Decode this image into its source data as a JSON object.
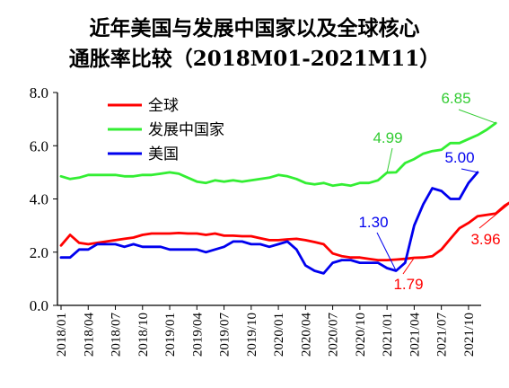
{
  "chart_data": {
    "type": "line",
    "title_line1": "近年美国与发展中国家以及全球核心",
    "title_line2": "通胀率比较（2018M01-2021M11）",
    "ylim": [
      0,
      8
    ],
    "yticks": [
      "0.0",
      "2.0",
      "4.0",
      "6.0",
      "8.0"
    ],
    "x_tick_labels": [
      "2018/01",
      "2018/04",
      "2018/07",
      "2018/10",
      "2019/01",
      "2019/04",
      "2019/07",
      "2019/10",
      "2020/01",
      "2020/04",
      "2020/07",
      "2020/10",
      "2021/01",
      "2021/04",
      "2021/07",
      "2021/10"
    ],
    "grid": false,
    "legend_position": "top-left",
    "series": [
      {
        "name": "全球",
        "color": "#ff0000",
        "values": [
          2.25,
          2.65,
          2.35,
          2.3,
          2.35,
          2.4,
          2.45,
          2.5,
          2.55,
          2.65,
          2.7,
          2.7,
          2.7,
          2.72,
          2.7,
          2.7,
          2.65,
          2.7,
          2.62,
          2.62,
          2.6,
          2.6,
          2.52,
          2.45,
          2.45,
          2.48,
          2.5,
          2.45,
          2.38,
          2.3,
          1.95,
          1.85,
          1.8,
          1.8,
          1.75,
          1.7,
          1.7,
          1.72,
          1.75,
          1.79,
          1.8,
          1.85,
          2.1,
          2.5,
          2.9,
          3.1,
          3.35,
          3.4,
          3.45,
          3.75,
          3.96
        ]
      },
      {
        "name": "发展中国家",
        "color": "#33ee33",
        "values": [
          4.85,
          4.75,
          4.8,
          4.9,
          4.9,
          4.9,
          4.9,
          4.85,
          4.85,
          4.9,
          4.9,
          4.95,
          5.0,
          4.95,
          4.8,
          4.65,
          4.6,
          4.7,
          4.65,
          4.7,
          4.65,
          4.7,
          4.75,
          4.8,
          4.9,
          4.85,
          4.75,
          4.6,
          4.55,
          4.6,
          4.5,
          4.55,
          4.5,
          4.6,
          4.6,
          4.7,
          4.99,
          5.0,
          5.35,
          5.5,
          5.7,
          5.8,
          5.85,
          6.1,
          6.1,
          6.25,
          6.4,
          6.6,
          6.85
        ]
      },
      {
        "name": "美国",
        "color": "#0000ee",
        "values": [
          1.8,
          1.8,
          2.1,
          2.1,
          2.3,
          2.3,
          2.3,
          2.2,
          2.3,
          2.2,
          2.2,
          2.2,
          2.1,
          2.1,
          2.1,
          2.1,
          2.0,
          2.1,
          2.2,
          2.4,
          2.4,
          2.3,
          2.3,
          2.2,
          2.3,
          2.4,
          2.1,
          1.5,
          1.3,
          1.2,
          1.6,
          1.7,
          1.7,
          1.6,
          1.6,
          1.6,
          1.4,
          1.3,
          1.6,
          3.0,
          3.8,
          4.4,
          4.3,
          4.0,
          4.0,
          4.6,
          5.0
        ]
      }
    ],
    "annotations": [
      {
        "text": "6.85",
        "series": 1,
        "color": "#33cc33"
      },
      {
        "text": "4.99",
        "series": 1,
        "color": "#33cc33"
      },
      {
        "text": "5.00",
        "series": 2,
        "color": "#0000ee"
      },
      {
        "text": "1.30",
        "series": 2,
        "color": "#0000ee"
      },
      {
        "text": "3.96",
        "series": 0,
        "color": "#ff0000"
      },
      {
        "text": "1.79",
        "series": 0,
        "color": "#ff0000"
      }
    ]
  }
}
